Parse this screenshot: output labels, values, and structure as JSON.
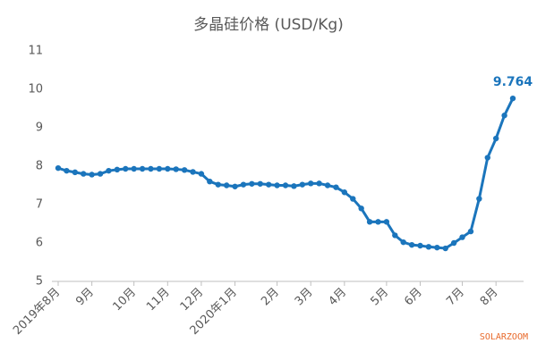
{
  "chart_data": {
    "type": "line",
    "title": "多晶硅价格 (USD/Kg)",
    "categories": [
      "2019年8月",
      null,
      null,
      null,
      "9月",
      null,
      null,
      null,
      null,
      "10月",
      null,
      null,
      null,
      "11月",
      null,
      null,
      null,
      "12月",
      null,
      null,
      null,
      "2020年1月",
      null,
      null,
      null,
      null,
      "2月",
      null,
      null,
      null,
      "3月",
      null,
      null,
      null,
      "4月",
      null,
      null,
      null,
      null,
      "5月",
      null,
      null,
      null,
      "6月",
      null,
      null,
      null,
      null,
      "7月",
      null,
      null,
      null,
      "8月",
      null,
      null
    ],
    "series": [
      {
        "name": "多晶硅价格",
        "color": "#1b75bc",
        "values": [
          7.95,
          7.88,
          7.84,
          7.8,
          7.78,
          7.8,
          7.88,
          7.91,
          7.93,
          7.93,
          7.93,
          7.93,
          7.93,
          7.93,
          7.92,
          7.9,
          7.85,
          7.8,
          7.6,
          7.52,
          7.5,
          7.47,
          7.52,
          7.54,
          7.54,
          7.52,
          7.5,
          7.5,
          7.48,
          7.52,
          7.55,
          7.55,
          7.5,
          7.45,
          7.32,
          7.15,
          6.9,
          6.55,
          6.55,
          6.55,
          6.2,
          6.02,
          5.95,
          5.93,
          5.9,
          5.88,
          5.86,
          6.0,
          6.15,
          6.3,
          7.15,
          8.22,
          8.72,
          9.32,
          9.764
        ],
        "value_labels": [
          null,
          null,
          null,
          null,
          null,
          null,
          null,
          null,
          null,
          null,
          null,
          null,
          null,
          null,
          null,
          null,
          null,
          null,
          null,
          null,
          null,
          null,
          null,
          null,
          null,
          null,
          null,
          null,
          null,
          null,
          null,
          null,
          null,
          null,
          null,
          null,
          null,
          null,
          null,
          null,
          null,
          null,
          null,
          null,
          null,
          null,
          null,
          null,
          null,
          null,
          null,
          null,
          null,
          null,
          "9.764"
        ]
      }
    ],
    "ylim": [
      5,
      11
    ],
    "yticks": [
      5,
      6,
      7,
      8,
      9,
      10,
      11
    ],
    "grid": false,
    "watermark": "SOLARZOOM",
    "watermark_color": "#e8692a"
  }
}
